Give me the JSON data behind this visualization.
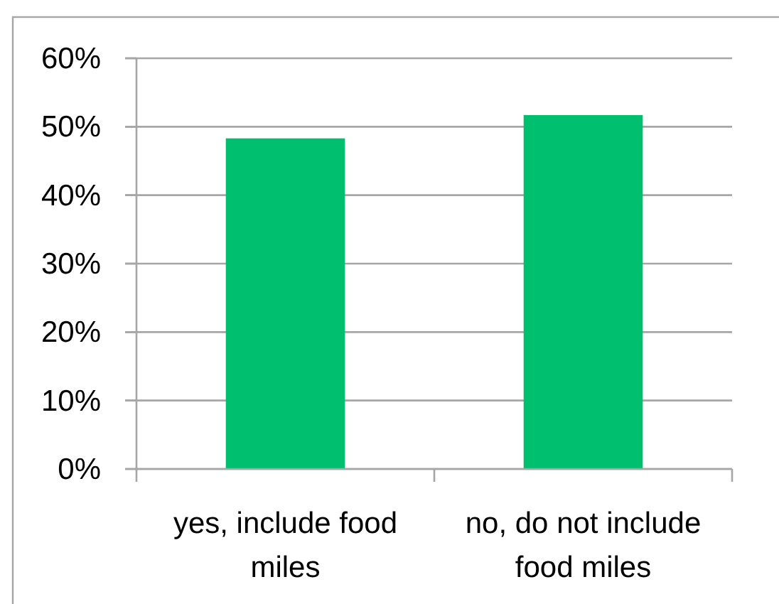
{
  "chart_data": {
    "type": "bar",
    "categories": [
      "yes, include food miles",
      "no, do not include food miles"
    ],
    "values": [
      48.3,
      51.7
    ],
    "color": "#00bf6f",
    "ylim": [
      0,
      60
    ],
    "yticks": [
      {
        "value": 0,
        "label": "0%"
      },
      {
        "value": 10,
        "label": "10%"
      },
      {
        "value": 20,
        "label": "20%"
      },
      {
        "value": 30,
        "label": "30%"
      },
      {
        "value": 40,
        "label": "40%"
      },
      {
        "value": 50,
        "label": "50%"
      },
      {
        "value": 60,
        "label": "60%"
      }
    ],
    "grid": "y"
  }
}
